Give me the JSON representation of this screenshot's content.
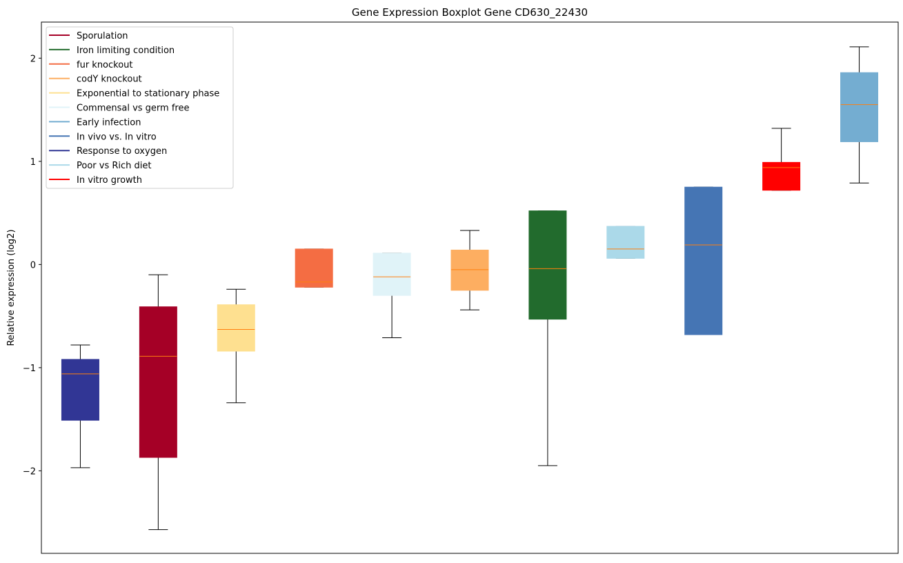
{
  "chart_data": {
    "type": "box",
    "title": "Gene Expression Boxplot Gene CD630_22430",
    "xlabel": "",
    "ylabel": "Relative expression (log2)",
    "ylim": [
      -2.8,
      2.35
    ],
    "yticks": [
      -2,
      -1,
      0,
      1,
      2
    ],
    "ytick_labels": [
      "−2",
      "−1",
      "0",
      "1",
      "2"
    ],
    "grid": false,
    "legend_position": "top-left",
    "median_color": "#ff7f0e",
    "legend": [
      {
        "label": "Sporulation",
        "color": "#a50026"
      },
      {
        "label": "Iron limiting condition",
        "color": "#226b2d"
      },
      {
        "label": "fur knockout",
        "color": "#f46d43"
      },
      {
        "label": "codY knockout",
        "color": "#fdae61"
      },
      {
        "label": "Exponential to stationary phase",
        "color": "#fee090"
      },
      {
        "label": "Commensal vs germ free",
        "color": "#e0f3f8"
      },
      {
        "label": "Early infection",
        "color": "#74add1"
      },
      {
        "label": "In vivo vs. In vitro",
        "color": "#4575b4"
      },
      {
        "label": "Response to oxygen",
        "color": "#313695"
      },
      {
        "label": "Poor vs Rich diet",
        "color": "#abd9e9"
      },
      {
        "label": "In vitro growth",
        "color": "#ff0000"
      }
    ],
    "boxes": [
      {
        "group": "Response to oxygen",
        "color": "#313695",
        "whislo": -1.97,
        "q1": -1.51,
        "median": -1.06,
        "q3": -0.92,
        "whishi": -0.78
      },
      {
        "group": "Sporulation",
        "color": "#a50026",
        "whislo": -2.57,
        "q1": -1.87,
        "median": -0.89,
        "q3": -0.41,
        "whishi": -0.1
      },
      {
        "group": "Exponential to stationary phase",
        "color": "#fee090",
        "whislo": -1.34,
        "q1": -0.84,
        "median": -0.63,
        "q3": -0.39,
        "whishi": -0.24
      },
      {
        "group": "fur knockout",
        "color": "#f46d43",
        "whislo": -0.22,
        "q1": -0.22,
        "median": -0.17,
        "q3": 0.15,
        "whishi": 0.15
      },
      {
        "group": "Commensal vs germ free",
        "color": "#e0f3f8",
        "whislo": -0.71,
        "q1": -0.3,
        "median": -0.12,
        "q3": 0.11,
        "whishi": 0.11
      },
      {
        "group": "codY knockout",
        "color": "#fdae61",
        "whislo": -0.44,
        "q1": -0.25,
        "median": -0.05,
        "q3": 0.14,
        "whishi": 0.33
      },
      {
        "group": "Iron limiting condition",
        "color": "#226b2d",
        "whislo": -1.95,
        "q1": -0.53,
        "median": -0.04,
        "q3": 0.52,
        "whishi": 0.52
      },
      {
        "group": "Poor vs Rich diet",
        "color": "#abd9e9",
        "whislo": 0.06,
        "q1": 0.06,
        "median": 0.15,
        "q3": 0.37,
        "whishi": 0.37
      },
      {
        "group": "In vivo vs. In vitro",
        "color": "#4575b4",
        "whislo": -0.68,
        "q1": -0.68,
        "median": 0.19,
        "q3": 0.75,
        "whishi": 0.75
      },
      {
        "group": "In vitro growth",
        "color": "#ff0000",
        "whislo": 0.72,
        "q1": 0.72,
        "median": 0.94,
        "q3": 0.99,
        "whishi": 1.32
      },
      {
        "group": "Early infection",
        "color": "#74add1",
        "whislo": 0.79,
        "q1": 1.19,
        "median": 1.55,
        "q3": 1.86,
        "whishi": 2.11
      }
    ]
  }
}
